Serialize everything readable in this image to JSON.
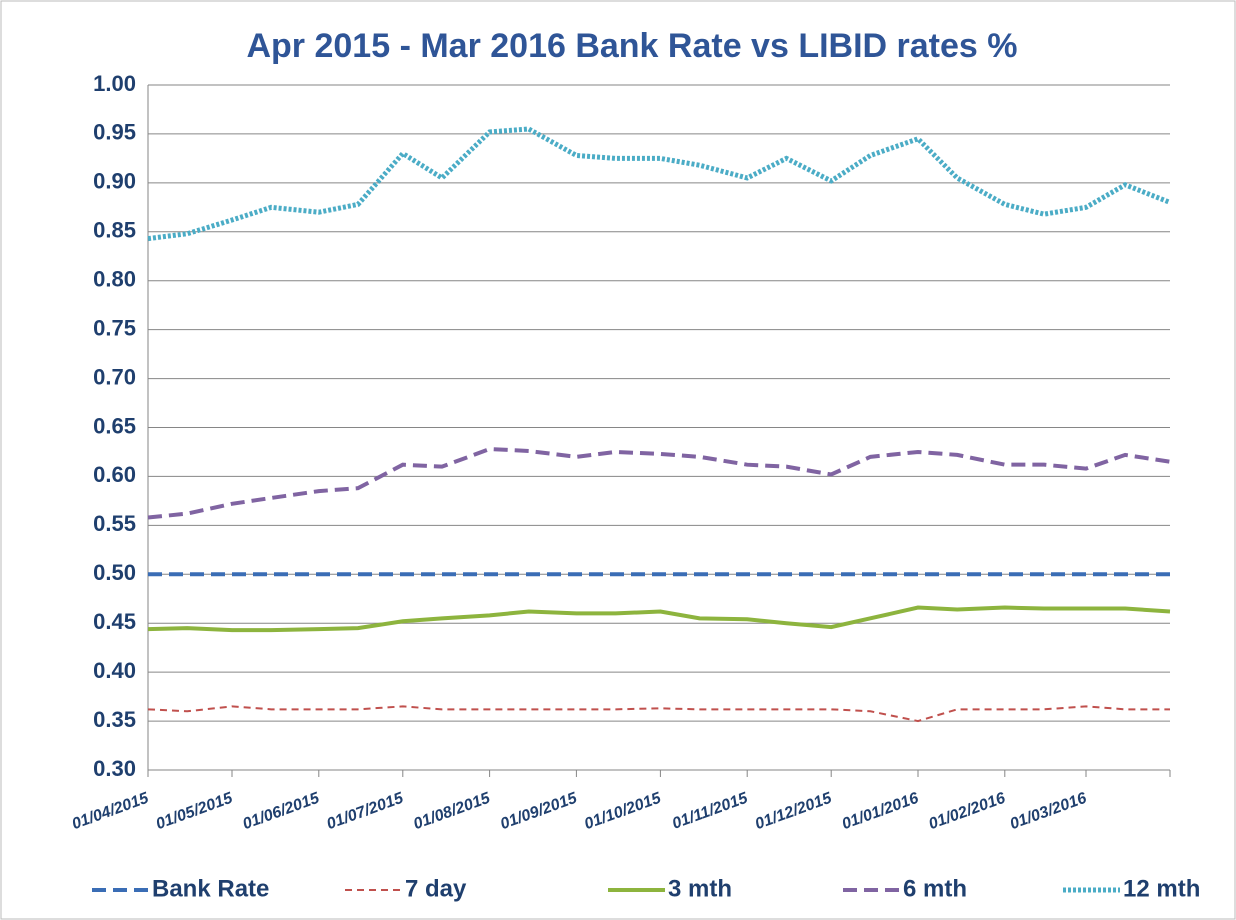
{
  "chart_data": {
    "type": "line",
    "title": "Apr 2015 - Mar 2016 Bank Rate vs LIBID rates %",
    "x": [
      "01/04/2015",
      "15/04/2015",
      "01/05/2015",
      "15/05/2015",
      "01/06/2015",
      "15/06/2015",
      "01/07/2015",
      "15/07/2015",
      "01/08/2015",
      "15/08/2015",
      "01/09/2015",
      "15/09/2015",
      "01/10/2015",
      "15/10/2015",
      "01/11/2015",
      "15/11/2015",
      "01/12/2015",
      "15/12/2015",
      "01/01/2016",
      "15/01/2016",
      "01/02/2016",
      "15/02/2016",
      "01/03/2016",
      "15/03/2016",
      "31/03/2016"
    ],
    "xlim": [
      "01/04/2015",
      "31/03/2016"
    ],
    "xticks": [
      "01/04/2015",
      "01/05/2015",
      "01/06/2015",
      "01/07/2015",
      "01/08/2015",
      "01/09/2015",
      "01/10/2015",
      "01/11/2015",
      "01/12/2015",
      "01/01/2016",
      "01/02/2016",
      "01/03/2016"
    ],
    "ylim": [
      0.3,
      1.0
    ],
    "yticks": [
      {
        "value": 0.3,
        "label": "0.30"
      },
      0.35,
      {
        "value": 0.4,
        "label": "0.40"
      },
      0.45,
      {
        "value": 0.5,
        "label": "0.50"
      },
      0.55,
      {
        "value": 0.6,
        "label": "0.60"
      },
      0.65,
      {
        "value": 0.7,
        "label": "0.70"
      },
      0.75,
      {
        "value": 0.8,
        "label": "0.80"
      },
      0.85,
      {
        "value": 0.9,
        "label": "0.90"
      },
      0.95,
      {
        "value": 1.0,
        "label": "1.00"
      }
    ],
    "grid": true,
    "legend": "bottom",
    "series": [
      {
        "name": "Bank Rate",
        "color": "#3a6db5",
        "dash": "dashed",
        "values": [
          0.5,
          0.5,
          0.5,
          0.5,
          0.5,
          0.5,
          0.5,
          0.5,
          0.5,
          0.5,
          0.5,
          0.5,
          0.5,
          0.5,
          0.5,
          0.5,
          0.5,
          0.5,
          0.5,
          0.5,
          0.5,
          0.5,
          0.5,
          0.5,
          0.5
        ]
      },
      {
        "name": "7 day",
        "color": "#c0504d",
        "dash": "fine-dashed",
        "values": [
          0.362,
          0.36,
          0.365,
          0.362,
          0.362,
          0.362,
          0.365,
          0.362,
          0.362,
          0.362,
          0.362,
          0.362,
          0.363,
          0.362,
          0.362,
          0.362,
          0.362,
          0.36,
          0.35,
          0.362,
          0.362,
          0.362,
          0.365,
          0.362,
          0.362
        ]
      },
      {
        "name": "3 mth",
        "color": "#8db43e",
        "dash": "solid",
        "values": [
          0.444,
          0.445,
          0.443,
          0.443,
          0.444,
          0.445,
          0.452,
          0.455,
          0.458,
          0.462,
          0.46,
          0.46,
          0.462,
          0.455,
          0.454,
          0.45,
          0.446,
          0.455,
          0.466,
          0.464,
          0.466,
          0.465,
          0.465,
          0.465,
          0.462
        ]
      },
      {
        "name": "6 mth",
        "color": "#8064a2",
        "dash": "dashed",
        "values": [
          0.558,
          0.562,
          0.572,
          0.578,
          0.585,
          0.588,
          0.612,
          0.61,
          0.628,
          0.626,
          0.62,
          0.625,
          0.623,
          0.62,
          0.612,
          0.61,
          0.602,
          0.62,
          0.625,
          0.622,
          0.612,
          0.612,
          0.608,
          0.622,
          0.615
        ]
      },
      {
        "name": "12 mth",
        "color": "#4bacc6",
        "dash": "dotted",
        "values": [
          0.843,
          0.848,
          0.862,
          0.875,
          0.87,
          0.878,
          0.93,
          0.905,
          0.952,
          0.955,
          0.928,
          0.925,
          0.925,
          0.918,
          0.905,
          0.925,
          0.902,
          0.928,
          0.945,
          0.905,
          0.878,
          0.868,
          0.875,
          0.898,
          0.88
        ]
      }
    ]
  }
}
